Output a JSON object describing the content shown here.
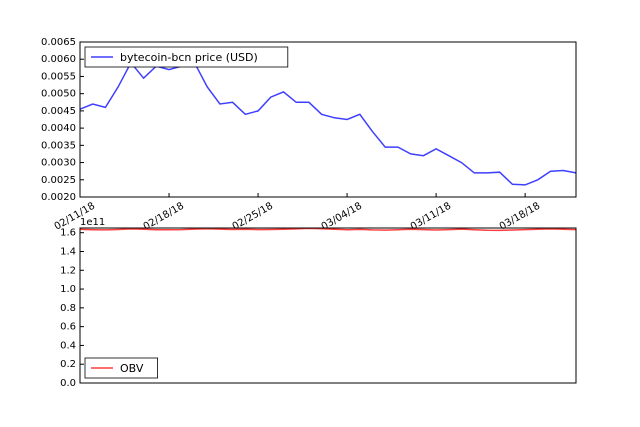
{
  "chart_data": [
    {
      "type": "line",
      "x": [
        "02/11/18",
        "02/12/18",
        "02/13/18",
        "02/14/18",
        "02/15/18",
        "02/16/18",
        "02/17/18",
        "02/18/18",
        "02/19/18",
        "02/20/18",
        "02/21/18",
        "02/22/18",
        "02/23/18",
        "02/24/18",
        "02/25/18",
        "02/26/18",
        "02/27/18",
        "02/28/18",
        "03/01/18",
        "03/02/18",
        "03/03/18",
        "03/04/18",
        "03/05/18",
        "03/06/18",
        "03/07/18",
        "03/08/18",
        "03/09/18",
        "03/10/18",
        "03/11/18",
        "03/12/18",
        "03/13/18",
        "03/14/18",
        "03/15/18",
        "03/16/18",
        "03/17/18",
        "03/18/18",
        "03/19/18",
        "03/20/18",
        "03/21/18",
        "03/22/18"
      ],
      "xticks": [
        "02/11/18",
        "02/18/18",
        "02/25/18",
        "03/04/18",
        "03/11/18",
        "03/18/18"
      ],
      "series": [
        {
          "name": "bytecoin-bcn price (USD)",
          "color": "#3f3fff",
          "values": [
            0.00455,
            0.0047,
            0.0046,
            0.0052,
            0.0059,
            0.00545,
            0.0058,
            0.0057,
            0.0058,
            0.0059,
            0.0052,
            0.0047,
            0.00475,
            0.0044,
            0.0045,
            0.0049,
            0.00505,
            0.00475,
            0.00475,
            0.0044,
            0.0043,
            0.00425,
            0.0044,
            0.0039,
            0.00345,
            0.00345,
            0.00325,
            0.0032,
            0.0034,
            0.0032,
            0.003,
            0.0027,
            0.0027,
            0.00272,
            0.00237,
            0.00235,
            0.0025,
            0.00275,
            0.00277,
            0.0027
          ]
        }
      ],
      "ylim": [
        0.002,
        0.0065
      ],
      "yticks": [
        {
          "value": 0.002,
          "label": "0.0020"
        },
        {
          "value": 0.0025,
          "label": "0.0025"
        },
        {
          "value": 0.003,
          "label": "0.0030"
        },
        {
          "value": 0.0035,
          "label": "0.0035"
        },
        {
          "value": 0.004,
          "label": "0.0040"
        },
        {
          "value": 0.0045,
          "label": "0.0045"
        },
        {
          "value": 0.005,
          "label": "0.0050"
        },
        {
          "value": 0.0055,
          "label": "0.0055"
        },
        {
          "value": 0.006,
          "label": "0.0060"
        },
        {
          "value": 0.0065,
          "label": "0.0065"
        }
      ],
      "legend": "upper left"
    },
    {
      "type": "line",
      "x": [
        "02/11/18",
        "02/12/18",
        "02/13/18",
        "02/14/18",
        "02/15/18",
        "02/16/18",
        "02/17/18",
        "02/18/18",
        "02/19/18",
        "02/20/18",
        "02/21/18",
        "02/22/18",
        "02/23/18",
        "02/24/18",
        "02/25/18",
        "02/26/18",
        "02/27/18",
        "02/28/18",
        "03/01/18",
        "03/02/18",
        "03/03/18",
        "03/04/18",
        "03/05/18",
        "03/06/18",
        "03/07/18",
        "03/08/18",
        "03/09/18",
        "03/10/18",
        "03/11/18",
        "03/12/18",
        "03/13/18",
        "03/14/18",
        "03/15/18",
        "03/16/18",
        "03/17/18",
        "03/18/18",
        "03/19/18",
        "03/20/18",
        "03/21/18",
        "03/22/18"
      ],
      "series": [
        {
          "name": "OBV",
          "color": "#ff3f3f",
          "values": [
            163500000000,
            163200000000,
            163000000000,
            163400000000,
            164000000000,
            163600000000,
            163200000000,
            163100000000,
            163300000000,
            163800000000,
            164200000000,
            163800000000,
            163400000000,
            163700000000,
            163300000000,
            163400000000,
            163700000000,
            164000000000,
            164600000000,
            164200000000,
            163600000000,
            163100000000,
            163500000000,
            163000000000,
            162800000000,
            163200000000,
            163700000000,
            163300000000,
            162900000000,
            163300000000,
            163800000000,
            163200000000,
            162700000000,
            162400000000,
            162900000000,
            163300000000,
            163700000000,
            164000000000,
            163700000000,
            163300000000
          ]
        }
      ],
      "ylim": [
        0,
        165000000000
      ],
      "yticks": [
        {
          "value": 0,
          "label": "0.0"
        },
        {
          "value": 20000000000,
          "label": "0.2"
        },
        {
          "value": 40000000000,
          "label": "0.4"
        },
        {
          "value": 60000000000,
          "label": "0.6"
        },
        {
          "value": 80000000000,
          "label": "0.8"
        },
        {
          "value": 100000000000,
          "label": "1.0"
        },
        {
          "value": 120000000000,
          "label": "1.2"
        },
        {
          "value": 140000000000,
          "label": "1.4"
        },
        {
          "value": 160000000000,
          "label": "1.6"
        }
      ],
      "offset_text": "1e11",
      "legend": "lower left"
    }
  ]
}
